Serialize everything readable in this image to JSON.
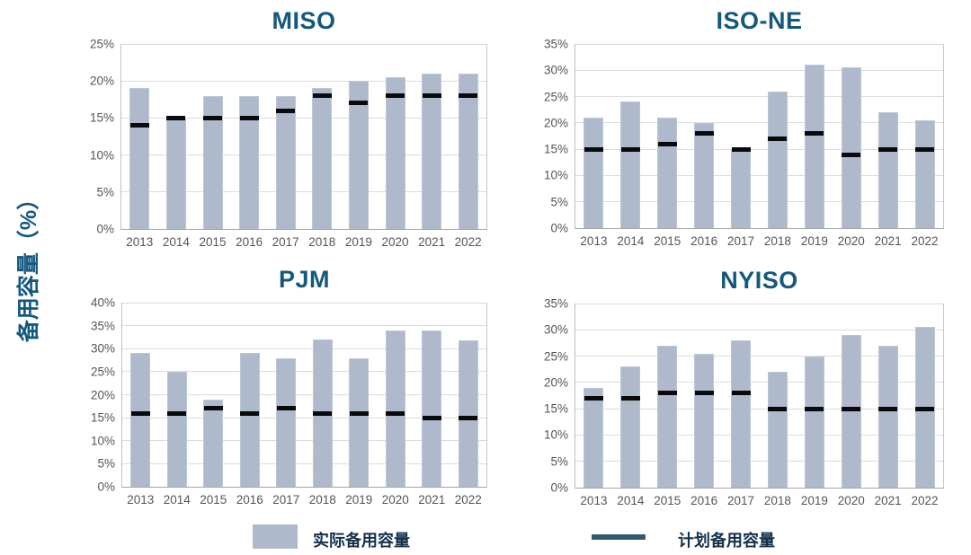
{
  "ylabel": "备用容量（%）",
  "legend": {
    "actual_label": "实际备用容量",
    "planned_label": "计划备用容量",
    "position": "bottom"
  },
  "colors": {
    "bar_fill": "#aeb9cc",
    "planned_dash": "#0a0a0a",
    "title_text": "#14587e",
    "axis_text": "#555555",
    "gridline": "#dcdcdc",
    "legend_line": "#33596e",
    "legend_text": "#14314a"
  },
  "chart_data": [
    {
      "type": "bar",
      "title": "MISO",
      "categories": [
        "2013",
        "2014",
        "2015",
        "2016",
        "2017",
        "2018",
        "2019",
        "2020",
        "2021",
        "2022"
      ],
      "series": [
        {
          "name": "实际备用容量",
          "style": "bar",
          "values": [
            19,
            15,
            18,
            18,
            18,
            19,
            20,
            20.5,
            21,
            21
          ]
        },
        {
          "name": "计划备用容量",
          "style": "dash",
          "values": [
            14,
            15,
            15,
            15,
            16,
            18,
            17,
            18,
            18,
            18
          ]
        }
      ],
      "xlabel": "",
      "ylabel": "备用容量（%）",
      "ylim": [
        0,
        25
      ],
      "ytick_step": 5,
      "ytick_format": "percent",
      "grid": true
    },
    {
      "type": "bar",
      "title": "ISO-NE",
      "categories": [
        "2013",
        "2014",
        "2015",
        "2016",
        "2017",
        "2018",
        "2019",
        "2020",
        "2021",
        "2022"
      ],
      "series": [
        {
          "name": "实际备用容量",
          "style": "bar",
          "values": [
            21,
            24,
            21,
            20,
            15,
            26,
            31,
            30.5,
            22,
            20.5
          ]
        },
        {
          "name": "计划备用容量",
          "style": "dash",
          "values": [
            15,
            15,
            16,
            18,
            15,
            17,
            18,
            14,
            15,
            15
          ]
        }
      ],
      "xlabel": "",
      "ylabel": "备用容量（%）",
      "ylim": [
        0,
        35
      ],
      "ytick_step": 5,
      "ytick_format": "percent",
      "grid": true
    },
    {
      "type": "bar",
      "title": "PJM",
      "categories": [
        "2013",
        "2014",
        "2015",
        "2016",
        "2017",
        "2018",
        "2019",
        "2020",
        "2021",
        "2022"
      ],
      "series": [
        {
          "name": "实际备用容量",
          "style": "bar",
          "values": [
            29,
            25,
            19,
            29,
            28,
            32,
            28,
            34,
            34,
            31.8
          ]
        },
        {
          "name": "计划备用容量",
          "style": "dash",
          "values": [
            16,
            16,
            17,
            16,
            17,
            16,
            16,
            16,
            15,
            15
          ]
        }
      ],
      "xlabel": "",
      "ylabel": "备用容量（%）",
      "ylim": [
        0,
        40
      ],
      "ytick_step": 5,
      "ytick_format": "percent",
      "grid": true
    },
    {
      "type": "bar",
      "title": "NYISO",
      "categories": [
        "2013",
        "2014",
        "2015",
        "2016",
        "2017",
        "2018",
        "2019",
        "2020",
        "2021",
        "2022"
      ],
      "series": [
        {
          "name": "实际备用容量",
          "style": "bar",
          "values": [
            19,
            23,
            27,
            25.5,
            28,
            22,
            25,
            29,
            27,
            30.5
          ]
        },
        {
          "name": "计划备用容量",
          "style": "dash",
          "values": [
            17,
            17,
            18,
            18,
            18,
            15,
            15,
            15,
            15,
            15
          ]
        }
      ],
      "xlabel": "",
      "ylabel": "备用容量（%）",
      "ylim": [
        0,
        35
      ],
      "ytick_step": 5,
      "ytick_format": "percent",
      "grid": true
    }
  ]
}
